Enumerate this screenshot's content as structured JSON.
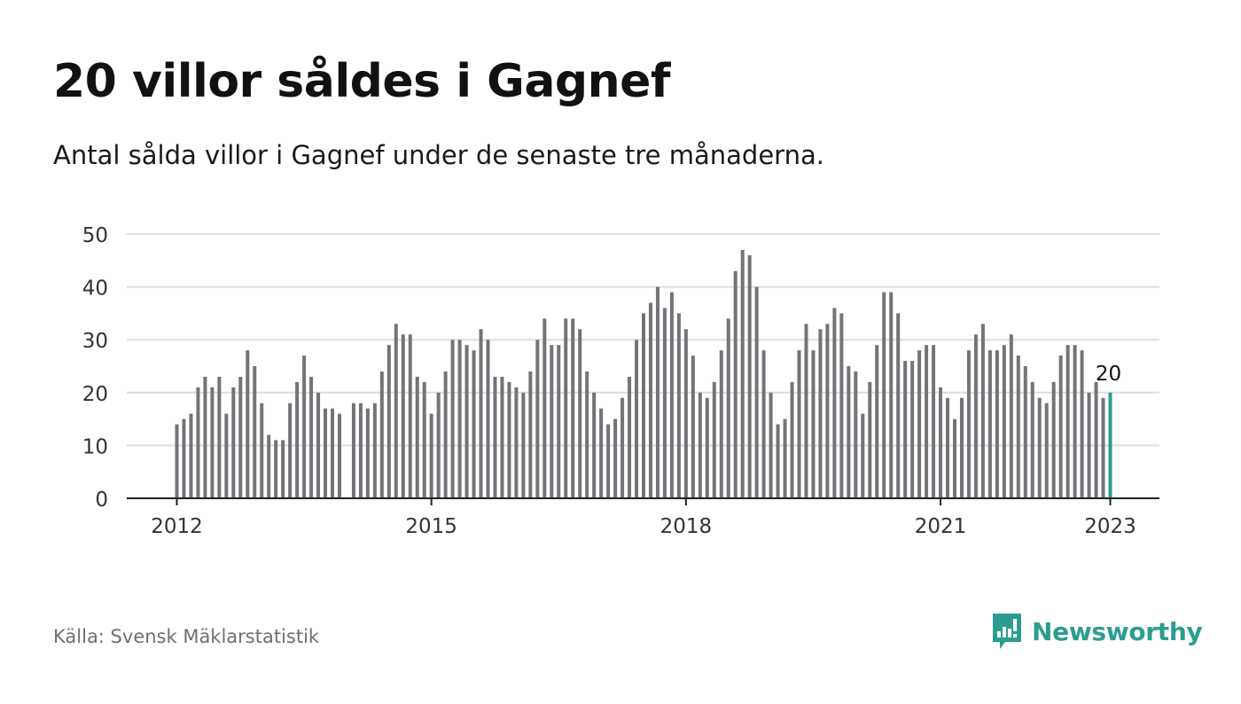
{
  "title": "20 villor såldes i Gagnef",
  "subtitle": "Antal sålda villor i Gagnef under de senaste tre månaderna.",
  "source": "Källa: Svensk Mäklarstatistik",
  "brand": "Newsworthy",
  "colors": {
    "bar": "#737378",
    "highlight": "#2a9d8f",
    "grid": "#dddddd",
    "axis": "#222222",
    "brand": "#2a9d8f"
  },
  "chart_data": {
    "type": "bar",
    "x_start": "2012-01",
    "x_end": "2023-01",
    "values": [
      14,
      15,
      16,
      21,
      23,
      21,
      23,
      16,
      21,
      23,
      28,
      25,
      18,
      12,
      11,
      11,
      18,
      22,
      27,
      23,
      20,
      17,
      17,
      16,
      null,
      18,
      18,
      17,
      18,
      24,
      29,
      33,
      31,
      31,
      23,
      22,
      16,
      20,
      24,
      30,
      30,
      29,
      28,
      32,
      30,
      23,
      23,
      22,
      21,
      20,
      24,
      30,
      34,
      29,
      29,
      34,
      34,
      32,
      24,
      20,
      17,
      14,
      15,
      19,
      23,
      30,
      35,
      37,
      40,
      36,
      39,
      35,
      32,
      27,
      20,
      19,
      22,
      28,
      34,
      43,
      47,
      46,
      40,
      28,
      20,
      14,
      15,
      22,
      28,
      33,
      28,
      32,
      33,
      36,
      35,
      25,
      24,
      16,
      22,
      29,
      39,
      39,
      35,
      26,
      26,
      28,
      29,
      29,
      21,
      19,
      15,
      19,
      28,
      31,
      33,
      28,
      28,
      29,
      31,
      27,
      25,
      22,
      19,
      18,
      22,
      27,
      29,
      29,
      28,
      20,
      22,
      19,
      20
    ],
    "highlight_label": "20",
    "yticks": [
      0,
      10,
      20,
      30,
      40,
      50
    ],
    "ylim": [
      0,
      50
    ],
    "xticks": [
      "2012",
      "2015",
      "2018",
      "2021",
      "2023"
    ],
    "xtick_years": [
      2012,
      2015,
      2018,
      2021,
      2023
    ],
    "grid": true
  }
}
